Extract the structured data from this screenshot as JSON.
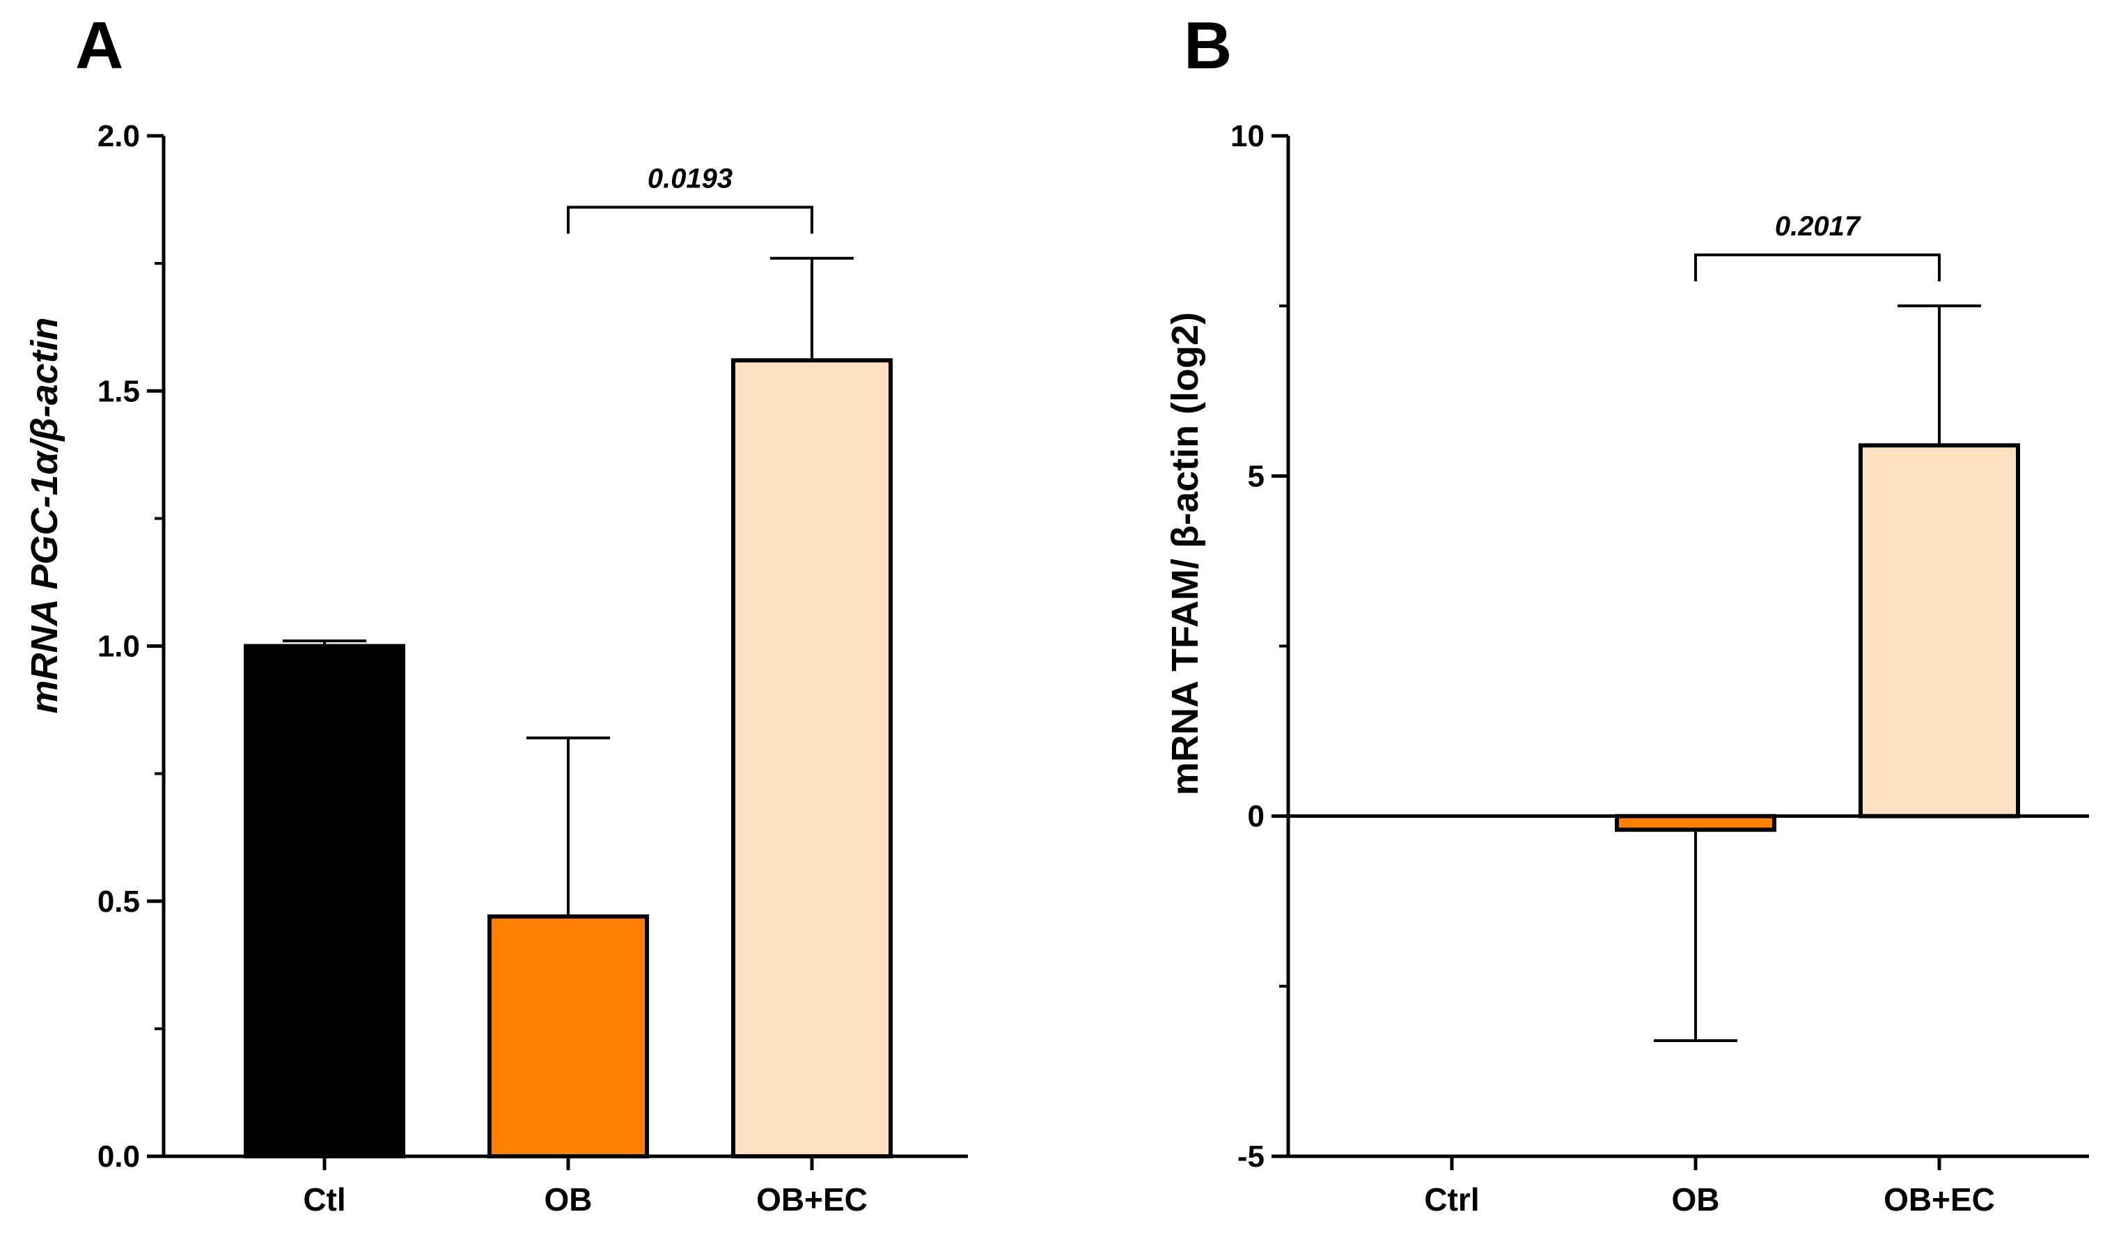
{
  "chart_data": [
    {
      "panel": "A",
      "type": "bar",
      "categories": [
        "Ctl",
        "OB",
        "OB+EC"
      ],
      "values": [
        1.0,
        0.47,
        1.56
      ],
      "errors": [
        0.01,
        0.35,
        0.2
      ],
      "colors": [
        "#000000",
        "#ff8000",
        "#fde0c2"
      ],
      "ylabel": "mRNA PGC-1α/β-actin",
      "ylim": [
        0,
        2
      ],
      "yticks": [
        "0.0",
        "0.5",
        "1.0",
        "1.5",
        "2.0"
      ],
      "ytick_values": [
        0,
        0.5,
        1.0,
        1.5,
        2.0
      ],
      "comparison": {
        "from": 1,
        "to": 2,
        "label": "0.0193",
        "y_data": 1.86
      }
    },
    {
      "panel": "B",
      "type": "bar",
      "categories": [
        "Ctrl",
        "OB",
        "OB+EC"
      ],
      "values": [
        0,
        -0.2,
        5.45
      ],
      "errors": [
        0,
        3.1,
        2.05
      ],
      "colors": [
        "#000000",
        "#ff8000",
        "#fde0c2"
      ],
      "ylabel": "mRNA TFAM/ β-actin (log2)",
      "ylim": [
        -5,
        10
      ],
      "yticks": [
        "-5",
        "0",
        "5",
        "10"
      ],
      "ytick_values": [
        -5,
        0,
        5,
        10
      ],
      "comparison": {
        "from": 1,
        "to": 2,
        "label": "0.2017",
        "y_data": 8.25
      }
    }
  ]
}
